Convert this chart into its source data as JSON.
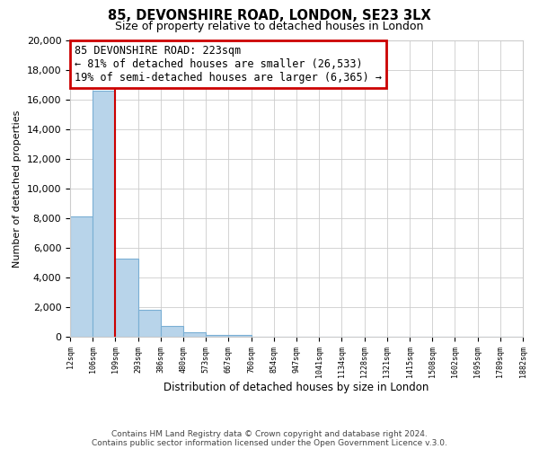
{
  "title": "85, DEVONSHIRE ROAD, LONDON, SE23 3LX",
  "subtitle": "Size of property relative to detached houses in London",
  "xlabel": "Distribution of detached houses by size in London",
  "ylabel": "Number of detached properties",
  "bar_values": [
    8100,
    16600,
    5300,
    1800,
    700,
    300,
    150,
    100,
    0,
    0,
    0,
    0,
    0,
    0,
    0,
    0,
    0,
    0,
    0,
    0
  ],
  "bin_labels": [
    "12sqm",
    "106sqm",
    "199sqm",
    "293sqm",
    "386sqm",
    "480sqm",
    "573sqm",
    "667sqm",
    "760sqm",
    "854sqm",
    "947sqm",
    "1041sqm",
    "1134sqm",
    "1228sqm",
    "1321sqm",
    "1415sqm",
    "1508sqm",
    "1602sqm",
    "1695sqm",
    "1789sqm",
    "1882sqm"
  ],
  "ylim": [
    0,
    20000
  ],
  "yticks": [
    0,
    2000,
    4000,
    6000,
    8000,
    10000,
    12000,
    14000,
    16000,
    18000,
    20000
  ],
  "bar_color": "#b8d4ea",
  "bar_edge_color": "#7aafd4",
  "vline_x": 2.0,
  "vline_color": "#cc0000",
  "annotation_title": "85 DEVONSHIRE ROAD: 223sqm",
  "annotation_line1": "← 81% of detached houses are smaller (26,533)",
  "annotation_line2": "19% of semi-detached houses are larger (6,365) →",
  "annotation_box_color": "#cc0000",
  "footer_line1": "Contains HM Land Registry data © Crown copyright and database right 2024.",
  "footer_line2": "Contains public sector information licensed under the Open Government Licence v.3.0.",
  "background_color": "#ffffff",
  "plot_bg_color": "#ffffff",
  "grid_color": "#cccccc",
  "figsize": [
    6.0,
    5.0
  ],
  "dpi": 100
}
